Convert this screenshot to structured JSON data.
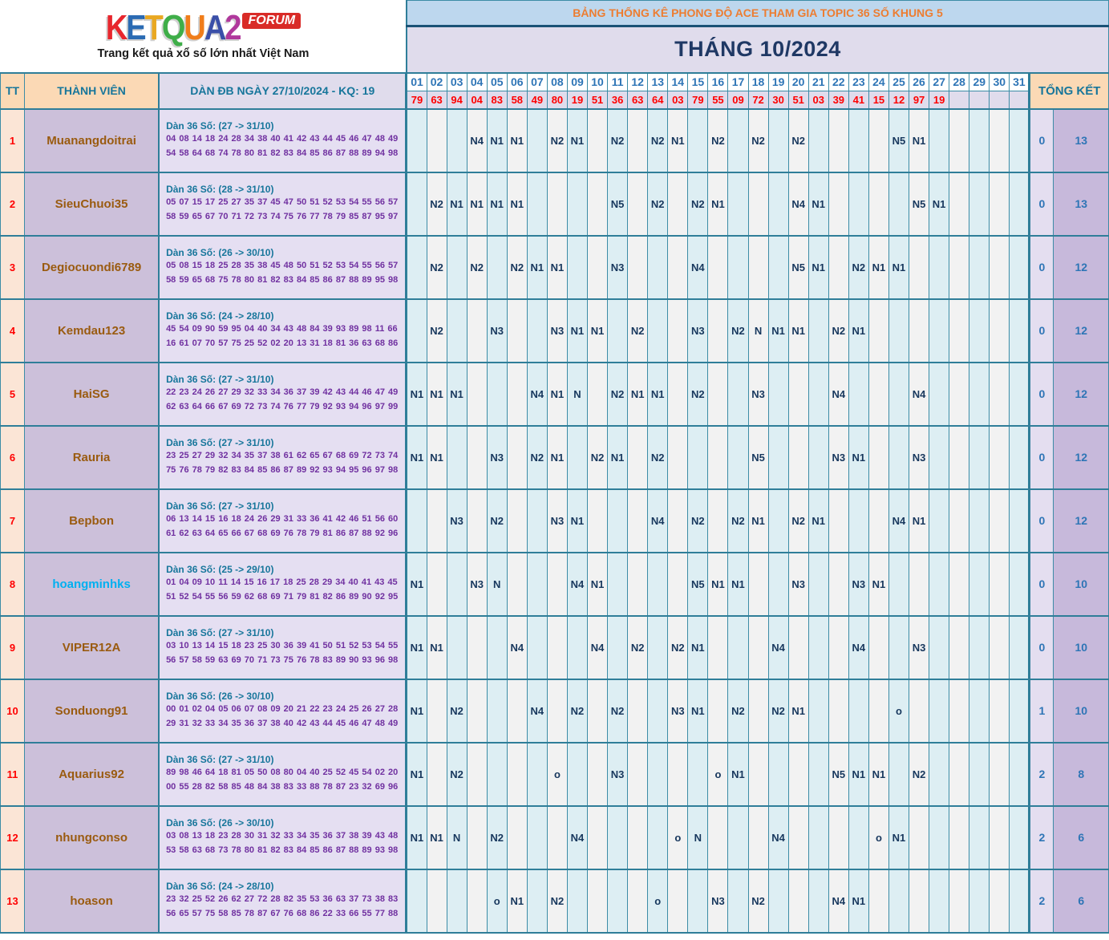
{
  "logo": {
    "letters": [
      {
        "ch": "K",
        "color": "#e8262d"
      },
      {
        "ch": "E",
        "color": "#2b6bb3"
      },
      {
        "ch": "T",
        "color": "#e9a822"
      },
      {
        "ch": "Q",
        "color": "#3fae49"
      },
      {
        "ch": "U",
        "color": "#f07d1a"
      },
      {
        "ch": "A",
        "color": "#3a4fa8"
      },
      {
        "ch": "2",
        "color": "#b0389c"
      }
    ],
    "forum": "FORUM",
    "tagline": "Trang kết quả xổ số lớn nhất Việt Nam"
  },
  "banner": {
    "title": "BẢNG THỐNG KÊ PHONG ĐỘ ACE THAM GIA TOPIC 36 SỐ KHUNG 5",
    "month": "THÁNG 10/2024"
  },
  "colors": {
    "member_name_default": "#9a5b10",
    "accent_teal_border": "#2f7e99",
    "result_red": "#ff0000",
    "value_navy": "#17375d"
  },
  "table": {
    "tt_header": "TT",
    "member_header": "THÀNH VIÊN",
    "dan_header": "DÀN ĐB NGÀY 27/10/2024 - KQ: 19",
    "total_header": "TỔNG KẾT",
    "days": [
      "01",
      "02",
      "03",
      "04",
      "05",
      "06",
      "07",
      "08",
      "09",
      "10",
      "11",
      "12",
      "13",
      "14",
      "15",
      "16",
      "17",
      "18",
      "19",
      "20",
      "21",
      "22",
      "23",
      "24",
      "25",
      "26",
      "27",
      "28",
      "29",
      "30",
      "31"
    ],
    "results": [
      "79",
      "63",
      "94",
      "04",
      "83",
      "58",
      "49",
      "80",
      "19",
      "51",
      "36",
      "63",
      "64",
      "03",
      "79",
      "55",
      "09",
      "72",
      "30",
      "51",
      "03",
      "39",
      "41",
      "15",
      "12",
      "97",
      "19",
      "",
      "",
      "",
      ""
    ],
    "rows": [
      {
        "tt": "1",
        "name": "Muanangdoitrai",
        "name_color": "#9a5b10",
        "dan_title": "Dàn 36 Số: (27 -> 31/10)",
        "dan_numbers": "04 08 14 18 24 28 34 38 40 41 42 43 44 45 46 47 48 49 54 58 64 68 74 78 80 81 82 83 84 85 86 87 88 89 94 98",
        "cells": {
          "04": "N4",
          "05": "N1",
          "06": "N1",
          "08": "N2",
          "09": "N1",
          "11": "N2",
          "13": "N2",
          "14": "N1",
          "16": "N2",
          "18": "N2",
          "20": "N2",
          "25": "N5",
          "26": "N1"
        },
        "tk1": "0",
        "tk2": "13"
      },
      {
        "tt": "2",
        "name": "SieuChuoi35",
        "name_color": "#9a5b10",
        "dan_title": "Dàn 36 Số: (28 -> 31/10)",
        "dan_numbers": "05 07 15 17 25 27 35 37 45 47 50 51 52 53 54 55 56 57 58 59 65 67 70 71 72 73 74 75 76 77 78 79 85 87 95 97",
        "cells": {
          "02": "N2",
          "03": "N1",
          "04": "N1",
          "05": "N1",
          "06": "N1",
          "11": "N5",
          "13": "N2",
          "15": "N2",
          "16": "N1",
          "20": "N4",
          "21": "N1",
          "26": "N5",
          "27": "N1"
        },
        "tk1": "0",
        "tk2": "13"
      },
      {
        "tt": "3",
        "name": "Degiocuondi6789",
        "name_color": "#9a5b10",
        "dan_title": "Dàn 36 Số: (26 -> 30/10)",
        "dan_numbers": "05 08 15 18 25 28 35 38 45 48 50 51 52 53 54 55 56 57 58 59 65 68 75 78 80 81 82 83 84 85 86 87 88 89 95 98",
        "cells": {
          "02": "N2",
          "04": "N2",
          "06": "N2",
          "07": "N1",
          "08": "N1",
          "11": "N3",
          "15": "N4",
          "20": "N5",
          "21": "N1",
          "23": "N2",
          "24": "N1",
          "25": "N1"
        },
        "tk1": "0",
        "tk2": "12"
      },
      {
        "tt": "4",
        "name": "Kemdau123",
        "name_color": "#9a5b10",
        "dan_title": "Dàn 36 Số: (24 -> 28/10)",
        "dan_numbers": "45 54 09 90 59 95 04 40 34 43 48 84 39 93 89 98 11 66 16 61 07 70 57 75 25 52 02 20 13 31 18 81 36 63 68 86",
        "cells": {
          "02": "N2",
          "05": "N3",
          "08": "N3",
          "09": "N1",
          "10": "N1",
          "12": "N2",
          "15": "N3",
          "17": "N2",
          "18": "N",
          "19": "N1",
          "20": "N1",
          "22": "N2",
          "23": "N1"
        },
        "tk1": "0",
        "tk2": "12"
      },
      {
        "tt": "5",
        "name": "HaiSG",
        "name_color": "#9a5b10",
        "dan_title": "Dàn 36 Số: (27 -> 31/10)",
        "dan_numbers": "22 23 24 26 27 29 32 33 34 36 37 39 42 43 44 46 47 49 62 63 64 66 67 69 72 73 74 76 77 79 92 93 94 96 97 99",
        "cells": {
          "01": "N1",
          "02": "N1",
          "03": "N1",
          "07": "N4",
          "08": "N1",
          "09": "N",
          "11": "N2",
          "12": "N1",
          "13": "N1",
          "15": "N2",
          "18": "N3",
          "22": "N4",
          "26": "N4"
        },
        "tk1": "0",
        "tk2": "12"
      },
      {
        "tt": "6",
        "name": "Rauria",
        "name_color": "#9a5b10",
        "dan_title": "Dàn 36 Số: (27 -> 31/10)",
        "dan_numbers": "23 25 27 29 32 34 35 37 38 61 62 65 67 68 69 72 73 74 75 76 78 79 82 83 84 85 86 87 89 92 93 94 95 96 97 98",
        "cells": {
          "01": "N1",
          "02": "N1",
          "05": "N3",
          "07": "N2",
          "08": "N1",
          "10": "N2",
          "11": "N1",
          "13": "N2",
          "18": "N5",
          "22": "N3",
          "23": "N1",
          "26": "N3"
        },
        "tk1": "0",
        "tk2": "12"
      },
      {
        "tt": "7",
        "name": "Bepbon",
        "name_color": "#9a5b10",
        "dan_title": "Dàn 36 Số: (27 -> 31/10)",
        "dan_numbers": "06 13 14 15 16 18 24 26 29 31 33 36 41 42 46 51 56 60 61 62 63 64 65 66 67 68 69 76 78 79 81 86 87 88 92 96",
        "cells": {
          "03": "N3",
          "05": "N2",
          "08": "N3",
          "09": "N1",
          "13": "N4",
          "15": "N2",
          "17": "N2",
          "18": "N1",
          "20": "N2",
          "21": "N1",
          "25": "N4",
          "26": "N1"
        },
        "tk1": "0",
        "tk2": "12"
      },
      {
        "tt": "8",
        "name": "hoangminhks",
        "name_color": "#00b0f0",
        "dan_title": "Dàn 36 Số: (25 -> 29/10)",
        "dan_numbers": "01 04 09 10 11 14 15 16 17 18 25 28 29 34 40 41 43 45 51 52 54 55 56 59 62 68 69 71 79 81 82 86 89 90 92 95",
        "cells": {
          "01": "N1",
          "04": "N3",
          "05": "N",
          "09": "N4",
          "10": "N1",
          "15": "N5",
          "16": "N1",
          "17": "N1",
          "20": "N3",
          "23": "N3",
          "24": "N1"
        },
        "tk1": "0",
        "tk2": "10"
      },
      {
        "tt": "9",
        "name": "VIPER12A",
        "name_color": "#9a5b10",
        "dan_title": "Dàn 36 Số: (27 -> 31/10)",
        "dan_numbers": "03 10 13 14 15 18 23 25 30 36 39 41 50 51 52 53 54 55 56 57 58 59 63 69 70 71 73 75 76 78 83 89 90 93 96 98",
        "cells": {
          "01": "N1",
          "02": "N1",
          "06": "N4",
          "10": "N4",
          "12": "N2",
          "14": "N2",
          "15": "N1",
          "19": "N4",
          "23": "N4",
          "26": "N3"
        },
        "tk1": "0",
        "tk2": "10"
      },
      {
        "tt": "10",
        "name": "Sonduong91",
        "name_color": "#9a5b10",
        "dan_title": "Dàn 36 Số: (26 -> 30/10)",
        "dan_numbers": "00 01 02 04 05 06 07 08 09 20 21 22 23 24 25 26 27 28 29 31 32 33 34 35 36 37 38 40 42 43 44 45 46 47 48 49",
        "cells": {
          "01": "N1",
          "03": "N2",
          "07": "N4",
          "09": "N2",
          "11": "N2",
          "14": "N3",
          "15": "N1",
          "17": "N2",
          "19": "N2",
          "20": "N1",
          "25": "o"
        },
        "tk1": "1",
        "tk2": "10"
      },
      {
        "tt": "11",
        "name": "Aquarius92",
        "name_color": "#9a5b10",
        "dan_title": "Dàn 36 Số: (27 -> 31/10)",
        "dan_numbers": "89 98 46 64 18 81 05 50 08 80 04 40 25 52 45 54 02 20 00 55 28 82 58 85 48 84 38 83 33 88 78 87 23 32 69 96",
        "cells": {
          "01": "N1",
          "03": "N2",
          "08": "o",
          "11": "N3",
          "16": "o",
          "17": "N1",
          "22": "N5",
          "23": "N1",
          "24": "N1",
          "26": "N2"
        },
        "tk1": "2",
        "tk2": "8"
      },
      {
        "tt": "12",
        "name": "nhungconso",
        "name_color": "#9a5b10",
        "dan_title": "Dàn 36 Số: (26 -> 30/10)",
        "dan_numbers": "03 08 13 18 23 28 30 31 32 33 34 35 36 37 38 39 43 48 53 58 63 68 73 78 80 81 82 83 84 85 86 87 88 89 93 98",
        "cells": {
          "01": "N1",
          "02": "N1",
          "03": "N",
          "05": "N2",
          "09": "N4",
          "14": "o",
          "15": "N",
          "19": "N4",
          "24": "o",
          "25": "N1"
        },
        "tk1": "2",
        "tk2": "6"
      },
      {
        "tt": "13",
        "name": "hoason",
        "name_color": "#9a5b10",
        "dan_title": "Dàn 36 Số: (24 -> 28/10)",
        "dan_numbers": "23 32 25 52 26 62 27 72 28 82 35 53 36 63 37 73 38 83 56 65 57 75 58 85 78 87 67 76 68 86 22 33 66 55 77 88",
        "cells": {
          "05": "o",
          "06": "N1",
          "08": "N2",
          "13": "o",
          "16": "N3",
          "18": "N2",
          "22": "N4",
          "23": "N1"
        },
        "tk1": "2",
        "tk2": "6"
      }
    ]
  }
}
